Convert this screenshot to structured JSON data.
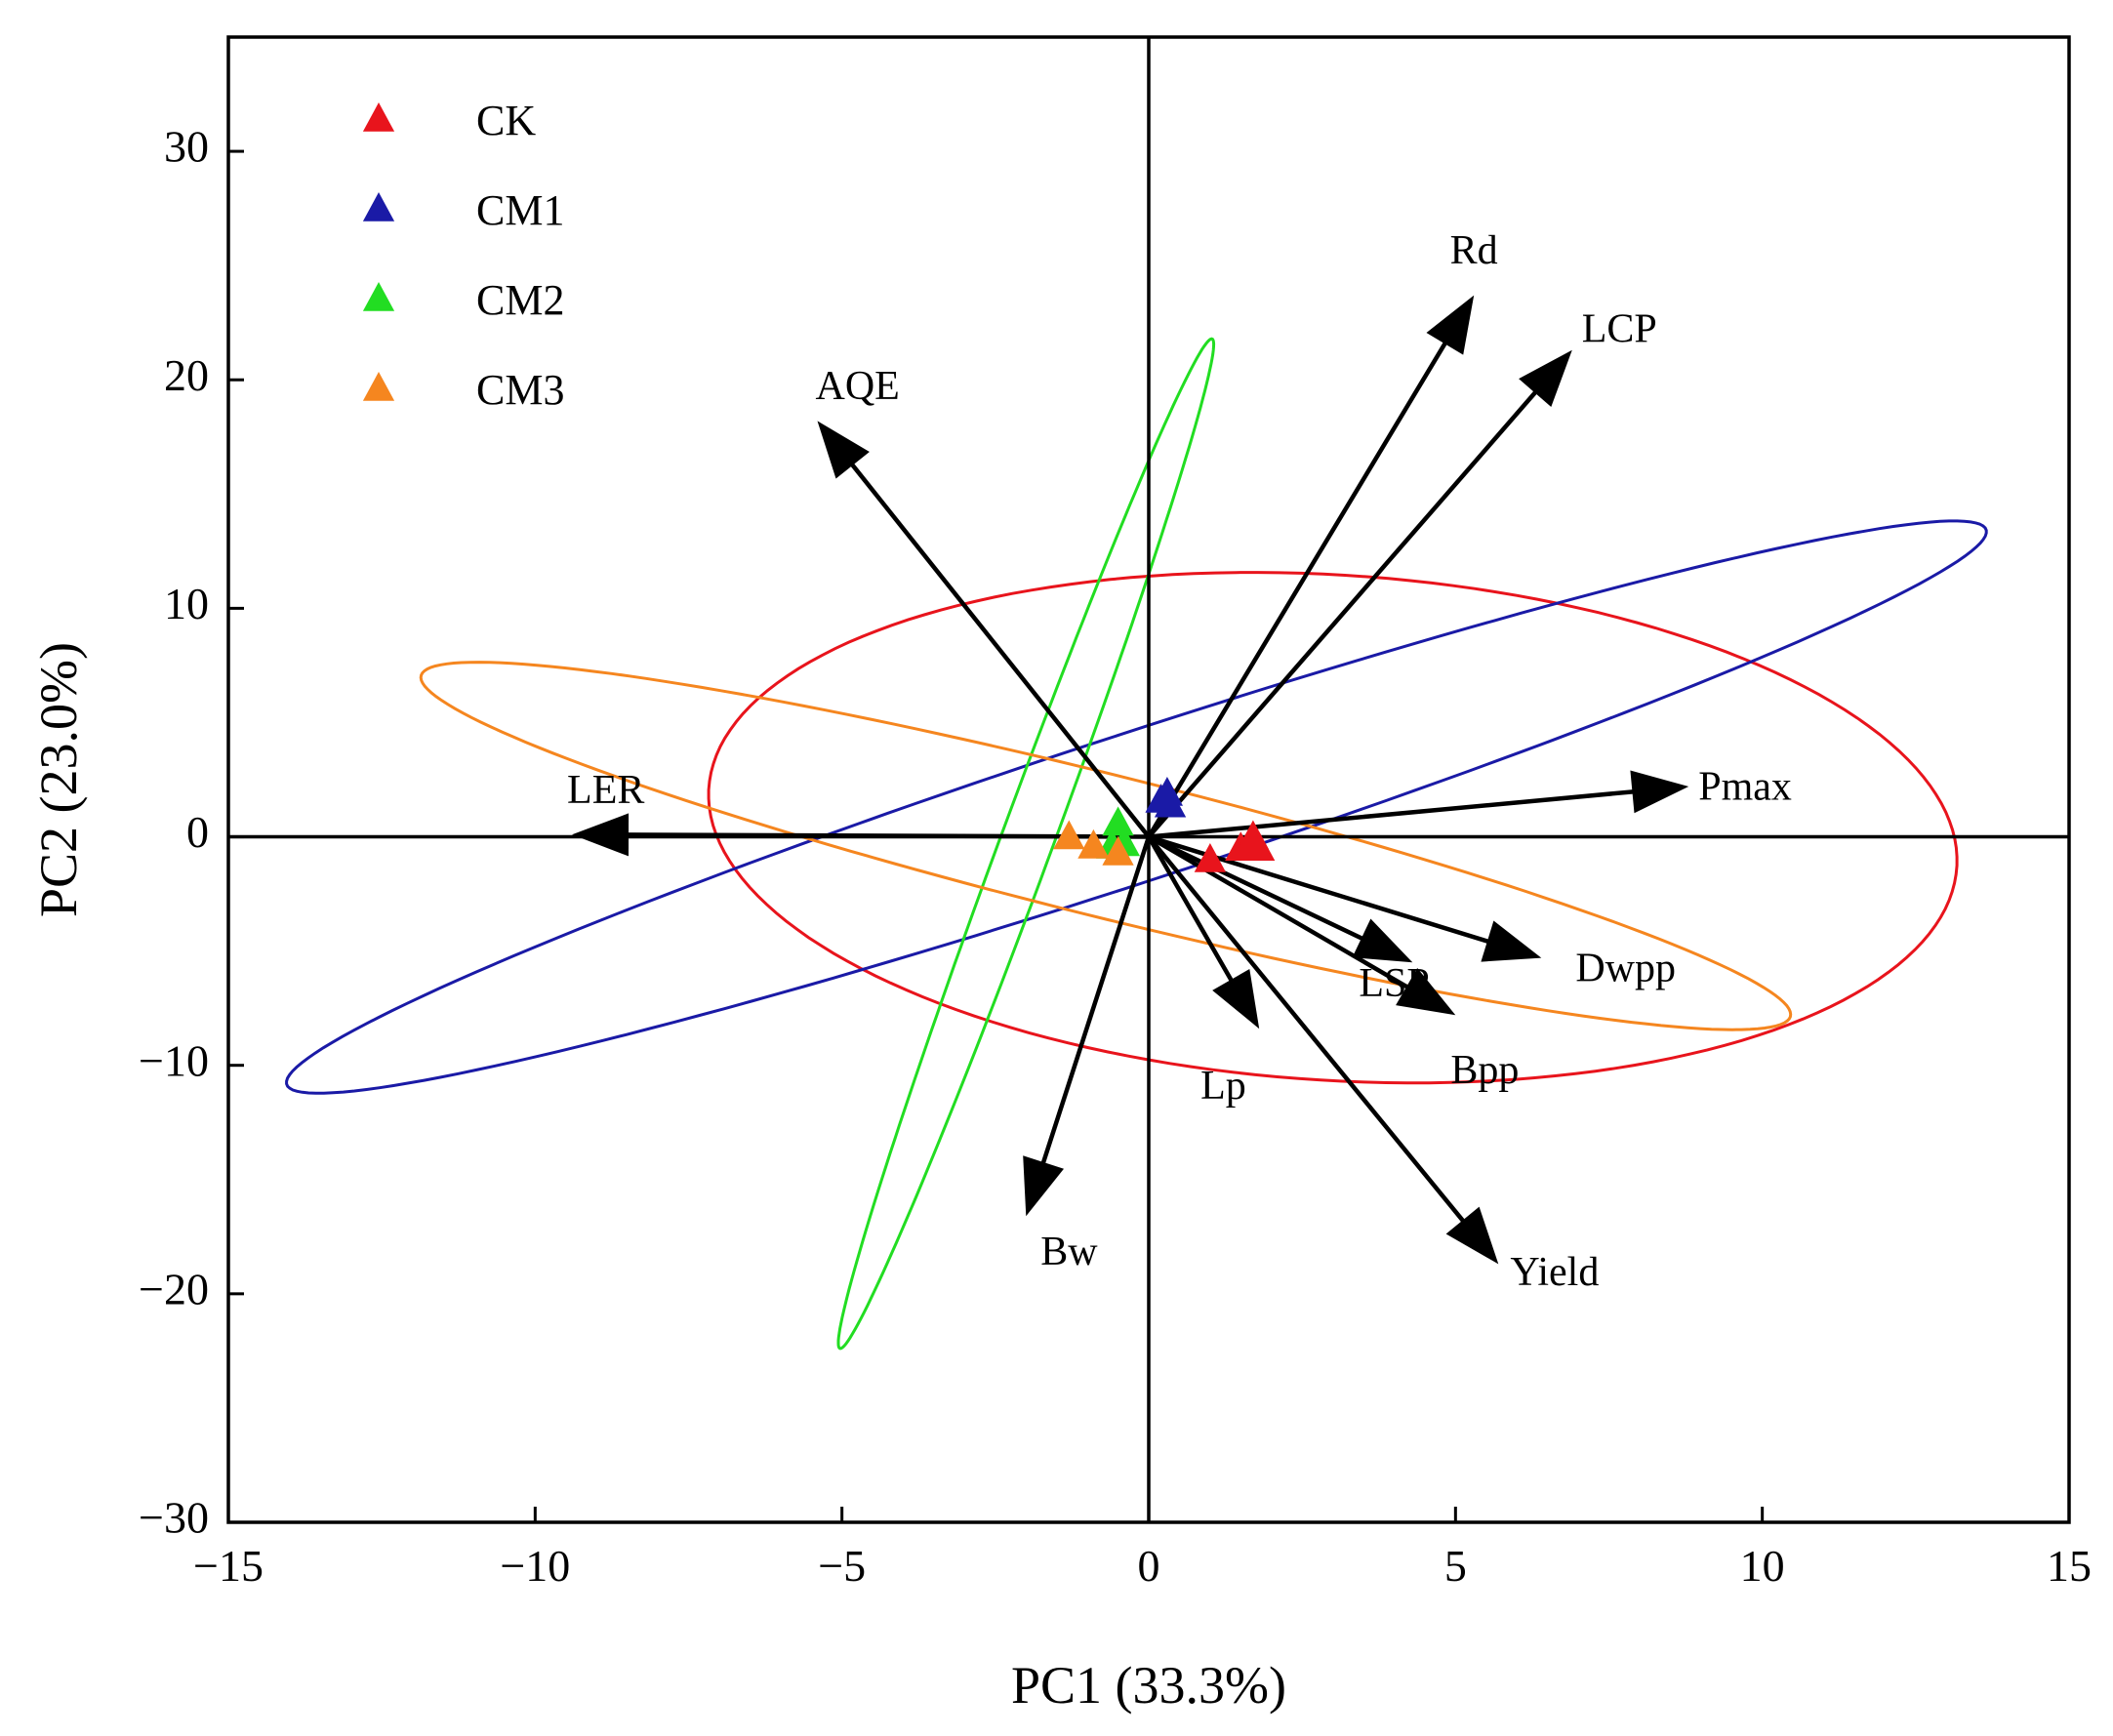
{
  "chart_data": {
    "type": "scatter",
    "subtype": "pca-biplot",
    "title": "",
    "xlabel": "PC1 (33.3%)",
    "ylabel": "PC2 (23.0%)",
    "xlim": [
      -15,
      15
    ],
    "ylim": [
      -30,
      35
    ],
    "xticks": [
      -15,
      -10,
      -5,
      0,
      5,
      10,
      15
    ],
    "yticks": [
      -30,
      -20,
      -10,
      0,
      10,
      20,
      30
    ],
    "xtick_labels": [
      "−15",
      "−10",
      "−5",
      "0",
      "5",
      "10",
      "15"
    ],
    "ytick_labels": [
      "−30",
      "−20",
      "−10",
      "0",
      "10",
      "20",
      "30"
    ],
    "grid": false,
    "zero_lines": true,
    "legend": {
      "position": "top-left",
      "marker": "triangle",
      "entries": [
        "CK",
        "CM1",
        "CM2",
        "CM3"
      ]
    },
    "series": [
      {
        "name": "CK",
        "color": "#e8141c",
        "points": [
          [
            1.0,
            -1.0
          ],
          [
            1.5,
            -0.5
          ],
          [
            1.7,
            0.0
          ],
          [
            1.8,
            -0.5
          ]
        ],
        "ellipse": {
          "center": [
            3.0,
            0.4
          ],
          "semi_axes": [
            9.8,
            11.5
          ],
          "angle_deg": 27
        }
      },
      {
        "name": "CM1",
        "color": "#1a1aa6",
        "points": [
          [
            0.2,
            1.6
          ],
          [
            0.3,
            1.9
          ],
          [
            0.35,
            1.4
          ]
        ],
        "ellipse": {
          "center": [
            -0.2,
            1.3
          ],
          "semi_axes": [
            18.5,
            2.55
          ],
          "angle_deg": 42
        }
      },
      {
        "name": "CM2",
        "color": "#22dd22",
        "points": [
          [
            -0.5,
            0.6
          ],
          [
            -0.6,
            -0.4
          ],
          [
            -0.4,
            -0.3
          ]
        ],
        "ellipse": {
          "center": [
            -2.0,
            -0.3
          ],
          "semi_axes": [
            22.3,
            0.45
          ],
          "angle_deg": 82.2
        }
      },
      {
        "name": "CM3",
        "color": "#f5861f",
        "points": [
          [
            -1.3,
            0.0
          ],
          [
            -0.9,
            -0.4
          ],
          [
            -0.5,
            -0.7
          ]
        ],
        "ellipse": {
          "center": [
            -0.7,
            -0.4
          ],
          "semi_axes": [
            13.5,
            2.65
          ],
          "angle_deg": -35
        }
      }
    ],
    "loadings": [
      {
        "label": "Rd",
        "x": 5.3,
        "y": 23.7
      },
      {
        "label": "LCP",
        "x": 6.9,
        "y": 21.3
      },
      {
        "label": "AQE",
        "x": -5.4,
        "y": 18.2
      },
      {
        "label": "LER",
        "x": -9.4,
        "y": 0.1
      },
      {
        "label": "Pmax",
        "x": 8.8,
        "y": 2.2
      },
      {
        "label": "LSP",
        "x": 4.3,
        "y": -5.5
      },
      {
        "label": "Dwpp",
        "x": 6.4,
        "y": -5.3
      },
      {
        "label": "Bpp",
        "x": 5.0,
        "y": -7.8
      },
      {
        "label": "Lp",
        "x": 1.8,
        "y": -8.4
      },
      {
        "label": "Yield",
        "x": 5.7,
        "y": -18.7
      },
      {
        "label": "Bw",
        "x": -2.0,
        "y": -16.6
      }
    ]
  }
}
